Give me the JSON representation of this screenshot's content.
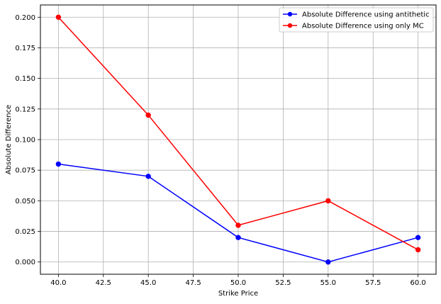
{
  "chart_data": {
    "type": "line",
    "xlabel": "Strike Price",
    "ylabel": "Absolute Difference",
    "x": [
      40,
      45,
      50,
      55,
      60
    ],
    "series": [
      {
        "name": "Absolute Difference using antithetic",
        "color": "#0000ff",
        "marker": "circle",
        "values": [
          0.08,
          0.07,
          0.02,
          0.0,
          0.02
        ]
      },
      {
        "name": "Absolute Difference using only MC",
        "color": "#ff0000",
        "marker": "circle",
        "values": [
          0.2,
          0.12,
          0.03,
          0.05,
          0.01
        ]
      }
    ],
    "xlim": [
      39.0,
      61.0
    ],
    "ylim": [
      -0.01,
      0.21
    ],
    "xticks": [
      "40.0",
      "42.5",
      "45.0",
      "47.5",
      "50.0",
      "52.5",
      "55.0",
      "57.5",
      "60.0"
    ],
    "yticks": [
      "0.000",
      "0.025",
      "0.050",
      "0.075",
      "0.100",
      "0.125",
      "0.150",
      "0.175",
      "0.200"
    ],
    "grid": true,
    "legend_position": "top-right"
  }
}
